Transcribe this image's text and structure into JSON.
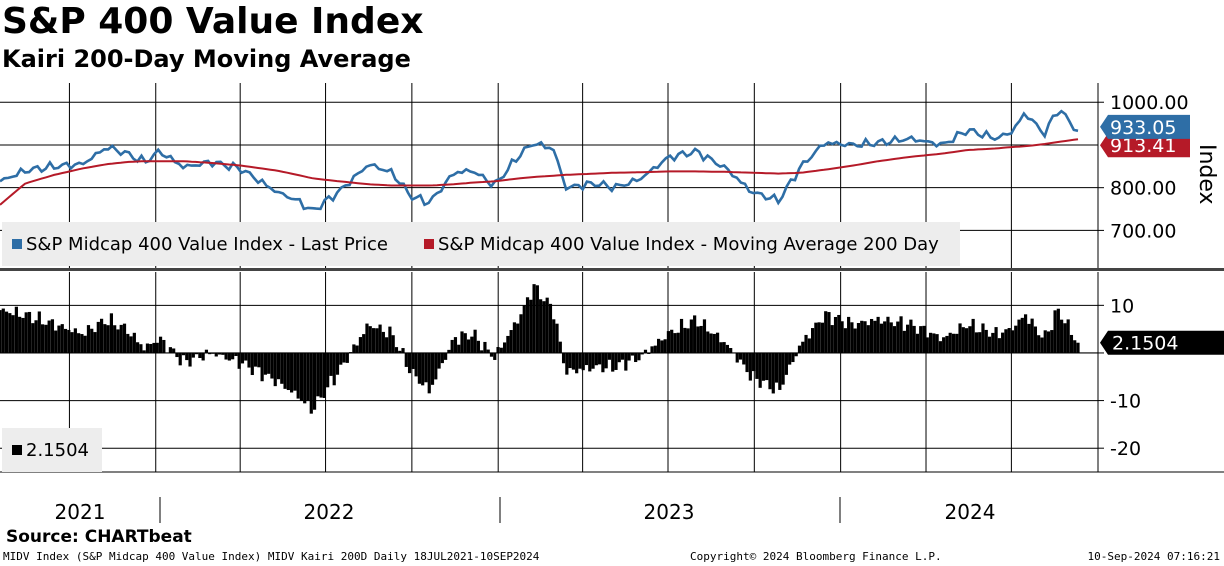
{
  "title": "S&P 400 Value Index",
  "subtitle": "Kairi 200-Day Moving Average",
  "source": "Source: CHARTbeat",
  "footer": {
    "left": "MIDV Index (S&P Midcap 400 Value Index) MIDV Kairi 200D  Daily 18JUL2021-10SEP2024",
    "middle": "Copyright© 2024 Bloomberg Finance L.P.",
    "right": "10-Sep-2024 07:16:21"
  },
  "colors": {
    "price": "#2e6ea6",
    "ma": "#b51a28",
    "kairi": "#000000",
    "grid": "#000000",
    "legend_bg": "#ededed"
  },
  "chart_data": [
    {
      "type": "line",
      "panel": "top",
      "ylabel": "Index",
      "ylim": [
        612,
        1045
      ],
      "yticks": [
        700,
        800,
        1000
      ],
      "ytick_labels": [
        "700.00",
        "800.00",
        "1000.00"
      ],
      "grid": true,
      "legend_position": "bottom-left",
      "x_dates": [
        "2021-07-19",
        "2021-08-15",
        "2021-09-15",
        "2021-10-15",
        "2021-11-10",
        "2021-12-01",
        "2021-12-20",
        "2022-01-05",
        "2022-01-31",
        "2022-03-01",
        "2022-04-01",
        "2022-05-10",
        "2022-06-01",
        "2022-06-17",
        "2022-07-15",
        "2022-08-16",
        "2022-09-10",
        "2022-09-30",
        "2022-10-20",
        "2022-11-15",
        "2022-12-05",
        "2022-12-28",
        "2023-01-25",
        "2023-02-08",
        "2023-03-01",
        "2023-03-14",
        "2023-04-15",
        "2023-05-05",
        "2023-06-01",
        "2023-07-01",
        "2023-07-31",
        "2023-09-01",
        "2023-09-28",
        "2023-10-27",
        "2023-11-20",
        "2023-12-15",
        "2024-01-15",
        "2024-02-10",
        "2024-03-15",
        "2024-04-19",
        "2024-05-15",
        "2024-06-15",
        "2024-07-01",
        "2024-07-16",
        "2024-08-05",
        "2024-08-20",
        "2024-09-10"
      ],
      "series": [
        {
          "name": "S&P Midcap 400 Value Index - Last Price",
          "values": [
            815,
            840,
            850,
            855,
            895,
            880,
            860,
            885,
            848,
            860,
            845,
            790,
            770,
            745,
            790,
            855,
            835,
            780,
            765,
            835,
            840,
            805,
            880,
            905,
            890,
            800,
            810,
            800,
            820,
            870,
            885,
            845,
            790,
            770,
            850,
            905,
            900,
            905,
            915,
            900,
            935,
            915,
            930,
            975,
            925,
            985,
            933.05
          ]
        },
        {
          "name": "S&P Midcap 400 Value Index - Moving Average 200 Day",
          "values": [
            760,
            810,
            830,
            845,
            855,
            860,
            862,
            862,
            862,
            858,
            852,
            840,
            830,
            822,
            815,
            808,
            805,
            805,
            805,
            808,
            812,
            815,
            822,
            825,
            828,
            830,
            833,
            835,
            836,
            838,
            838,
            837,
            835,
            833,
            835,
            842,
            852,
            862,
            872,
            880,
            888,
            892,
            895,
            897,
            902,
            907,
            913.41
          ]
        }
      ],
      "last_value_labels": [
        "933.05",
        "913.41"
      ]
    },
    {
      "type": "bar",
      "panel": "bottom",
      "series_label": "2.1504",
      "ylim": [
        -25,
        17
      ],
      "yticks": [
        -20,
        -10,
        0,
        10
      ],
      "ytick_labels": [
        "-20",
        "-10",
        "",
        "10"
      ],
      "grid": true,
      "x_dates": [
        "2021-07-19",
        "2021-08-15",
        "2021-09-15",
        "2021-10-15",
        "2021-11-10",
        "2021-12-01",
        "2021-12-20",
        "2022-01-05",
        "2022-01-31",
        "2022-03-01",
        "2022-04-01",
        "2022-05-10",
        "2022-06-01",
        "2022-06-17",
        "2022-07-15",
        "2022-08-16",
        "2022-09-10",
        "2022-09-30",
        "2022-10-20",
        "2022-11-15",
        "2022-12-05",
        "2022-12-28",
        "2023-01-25",
        "2023-02-08",
        "2023-03-01",
        "2023-03-14",
        "2023-04-15",
        "2023-05-05",
        "2023-06-01",
        "2023-07-01",
        "2023-07-31",
        "2023-09-01",
        "2023-09-28",
        "2023-10-27",
        "2023-11-20",
        "2023-12-15",
        "2024-01-15",
        "2024-02-10",
        "2024-03-15",
        "2024-04-19",
        "2024-05-15",
        "2024-06-15",
        "2024-07-01",
        "2024-07-16",
        "2024-08-05",
        "2024-08-20",
        "2024-09-10"
      ],
      "values": [
        9,
        8,
        6,
        4,
        7,
        5,
        1,
        3,
        -2,
        0,
        -2,
        -6,
        -9,
        -12,
        -4,
        6,
        4,
        -4,
        -8,
        3,
        4,
        -1,
        8,
        14,
        9,
        -4,
        -3,
        -3,
        -1,
        4,
        7,
        2,
        -5,
        -8,
        2,
        8,
        6,
        7,
        6,
        3,
        6,
        4,
        5,
        8,
        3,
        9,
        2.1504
      ],
      "last_value_label": "2.1504"
    }
  ],
  "x_axis": {
    "year_labels": [
      "2021",
      "2022",
      "2023",
      "2024"
    ]
  }
}
